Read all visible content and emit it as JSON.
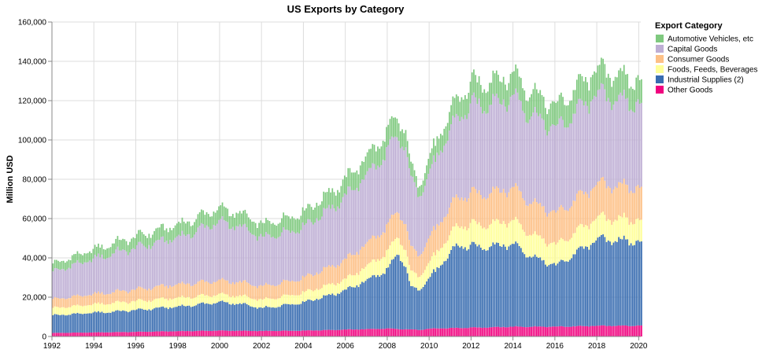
{
  "chart_data": {
    "type": "bar",
    "stacked": true,
    "title": "US Exports by Category",
    "xlabel": "",
    "ylabel": "Million USD",
    "ylim": [
      0,
      160000
    ],
    "xlim": [
      1992,
      2020.1
    ],
    "y_ticks": [
      0,
      20000,
      40000,
      60000,
      80000,
      100000,
      120000,
      140000,
      160000
    ],
    "y_tick_labels": [
      "0",
      "20,000",
      "40,000",
      "60,000",
      "80,000",
      "100,000",
      "120,000",
      "140,000",
      "160,000"
    ],
    "x_ticks": [
      1992,
      1994,
      1996,
      1998,
      2000,
      2002,
      2004,
      2006,
      2008,
      2010,
      2012,
      2014,
      2016,
      2018,
      2020
    ],
    "x_tick_labels": [
      "1992",
      "1994",
      "1996",
      "1998",
      "2000",
      "2002",
      "2004",
      "2006",
      "2008",
      "2010",
      "2012",
      "2014",
      "2016",
      "2018",
      "2020"
    ],
    "grid": true,
    "legend_title": "Export Category",
    "legend_position": "top-right",
    "frequency": "monthly",
    "start": "1992-01",
    "end": "2020-02",
    "series_order_bottom_to_top": [
      "Other Goods",
      "Industrial Supplies (2)",
      "Foods, Feeds, Beverages",
      "Consumer Goods",
      "Capital Goods",
      "Automotive Vehicles, etc"
    ],
    "series": [
      {
        "name": "Automotive Vehicles, etc",
        "color": "#7fc97f",
        "anchors": {
          "1992": 4000,
          "1995": 5200,
          "1998": 6500,
          "2000": 6800,
          "2001": 6700,
          "2002": 6800,
          "2004": 7500,
          "2006": 8800,
          "2008": 10000,
          "2008.8": 8800,
          "2009.4": 5000,
          "2010": 7800,
          "2012": 11000,
          "2014": 11800,
          "2016": 11500,
          "2018": 12500,
          "2020": 12000
        }
      },
      {
        "name": "Capital Goods",
        "color": "#beaed4",
        "anchors": {
          "1992": 14000,
          "1995": 20000,
          "1998": 24000,
          "2000": 30000,
          "2001": 28000,
          "2002": 24500,
          "2004": 26000,
          "2006": 32000,
          "2008": 38000,
          "2008.8": 38500,
          "2009.4": 31000,
          "2010": 33000,
          "2012": 45000,
          "2014": 46000,
          "2016": 43000,
          "2018": 46000,
          "2020": 42000
        }
      },
      {
        "name": "Consumer Goods",
        "color": "#fdc086",
        "anchors": {
          "1992": 4500,
          "1995": 5500,
          "1998": 6800,
          "2000": 7000,
          "2001": 7000,
          "2002": 6800,
          "2004": 7500,
          "2006": 10000,
          "2008": 13000,
          "2008.8": 13200,
          "2009.4": 11000,
          "2010": 12500,
          "2012": 15500,
          "2014": 16500,
          "2016": 16000,
          "2018": 17000,
          "2020": 16500
        }
      },
      {
        "name": "Foods, Feeds, Beverages",
        "color": "#ffff99",
        "anchors": {
          "1992": 3700,
          "1995": 4500,
          "1998": 4500,
          "2000": 3900,
          "2001": 4000,
          "2002": 4200,
          "2004": 5000,
          "2006": 5500,
          "2008": 9000,
          "2008.8": 8500,
          "2009.4": 7000,
          "2010": 8000,
          "2012": 11000,
          "2014": 12000,
          "2016": 10500,
          "2018": 11000,
          "2020": 11000
        }
      },
      {
        "name": "Industrial Supplies (2)",
        "color": "#386cb0",
        "anchors": {
          "1992": 9000,
          "1995": 10500,
          "1998": 12500,
          "2000": 14500,
          "2001": 13500,
          "2002": 11500,
          "2004": 14500,
          "2006": 20000,
          "2008": 30000,
          "2008.5": 38500,
          "2008.8": 32000,
          "2009.1": 21000,
          "2009.4": 20500,
          "2010": 26000,
          "2011.3": 42000,
          "2012": 41000,
          "2014": 42000,
          "2015": 35000,
          "2016": 31000,
          "2018": 44000,
          "2019": 43500,
          "2020": 42500
        }
      },
      {
        "name": "Other Goods",
        "color": "#f0027f",
        "anchors": {
          "1992": 1800,
          "1995": 2200,
          "1998": 2700,
          "2000": 3000,
          "2002": 2800,
          "2004": 3000,
          "2006": 3500,
          "2008": 4000,
          "2009.4": 3400,
          "2010": 4000,
          "2012": 4500,
          "2014": 5000,
          "2016": 5000,
          "2018": 5400,
          "2020": 5500
        }
      }
    ]
  }
}
